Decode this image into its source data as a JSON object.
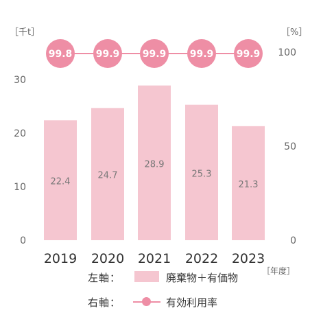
{
  "chart_data": {
    "type": "bar",
    "categories": [
      "2019",
      "2020",
      "2021",
      "2022",
      "2023"
    ],
    "series": [
      {
        "name": "廃棄物＋有価物",
        "axis": "left",
        "type": "bar",
        "values": [
          22.4,
          24.7,
          28.9,
          25.3,
          21.3
        ],
        "color": "#f5c6d0"
      },
      {
        "name": "有効利用率",
        "axis": "right",
        "type": "line",
        "values": [
          99.8,
          99.9,
          99.9,
          99.9,
          99.9
        ],
        "color": "#ee8ea5"
      }
    ],
    "left_axis": {
      "unit": "［千t］",
      "ticks": [
        0,
        10,
        20,
        30
      ],
      "ylim": [
        0,
        30
      ]
    },
    "right_axis": {
      "unit": "［%］",
      "ticks": [
        0,
        50,
        100
      ],
      "ylim": [
        0,
        100
      ]
    },
    "x_unit": "［年度］",
    "legend": [
      {
        "prefix": "左軸：",
        "label": "廃棄物＋有価物",
        "marker": "bar"
      },
      {
        "prefix": "右軸：",
        "label": "有効利用率",
        "marker": "line-dot"
      }
    ],
    "grid": false
  }
}
